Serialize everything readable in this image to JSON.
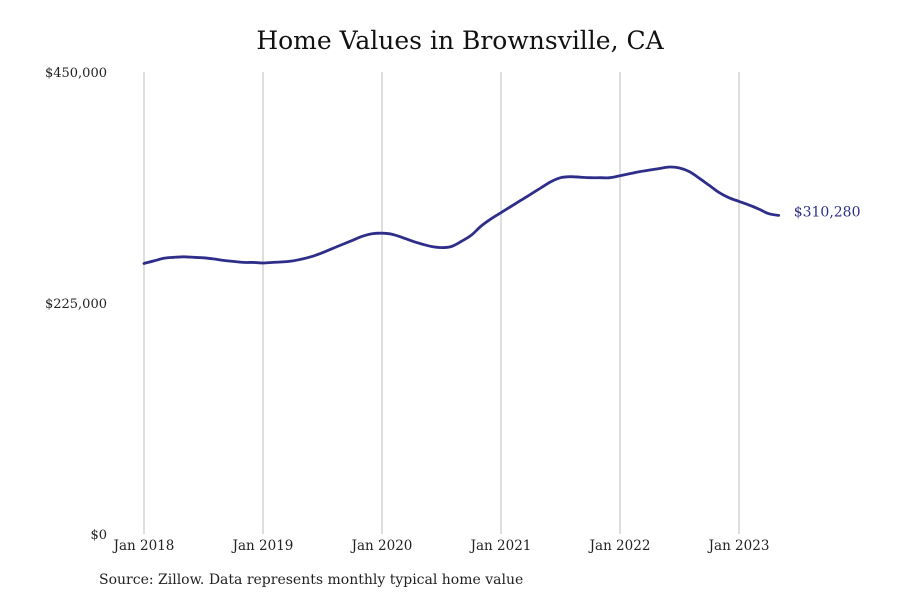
{
  "chart_data": {
    "type": "line",
    "title": "Home Values in Brownsville, CA",
    "source": "Source: Zillow. Data represents monthly typical home value",
    "xlabel": "",
    "ylabel": "",
    "ylim": [
      0,
      450000
    ],
    "y_ticks": [
      {
        "value": 0,
        "label": "$0"
      },
      {
        "value": 225000,
        "label": "$225,000"
      },
      {
        "value": 450000,
        "label": "$450,000"
      }
    ],
    "x_ticks": [
      {
        "month_index": 0,
        "label": "Jan 2018"
      },
      {
        "month_index": 12,
        "label": "Jan 2019"
      },
      {
        "month_index": 24,
        "label": "Jan 2020"
      },
      {
        "month_index": 36,
        "label": "Jan 2021"
      },
      {
        "month_index": 48,
        "label": "Jan 2022"
      },
      {
        "month_index": 60,
        "label": "Jan 2023"
      }
    ],
    "grid": "vertical",
    "end_label": "$310,280",
    "line_color": "#2e2e8a",
    "series": [
      {
        "x": [
          "2018-01",
          "2018-02",
          "2018-03",
          "2018-04",
          "2018-05",
          "2018-06",
          "2018-07",
          "2018-08",
          "2018-09",
          "2018-10",
          "2018-11",
          "2018-12",
          "2019-01",
          "2019-02",
          "2019-03",
          "2019-04",
          "2019-05",
          "2019-06",
          "2019-07",
          "2019-08",
          "2019-09",
          "2019-10",
          "2019-11",
          "2019-12",
          "2020-01",
          "2020-02",
          "2020-03",
          "2020-04",
          "2020-05",
          "2020-06",
          "2020-07",
          "2020-08",
          "2020-09",
          "2020-10",
          "2020-11",
          "2020-12",
          "2021-01",
          "2021-02",
          "2021-03",
          "2021-04",
          "2021-05",
          "2021-06",
          "2021-07",
          "2021-08",
          "2021-09",
          "2021-10",
          "2021-11",
          "2021-12",
          "2022-01",
          "2022-02",
          "2022-03",
          "2022-04",
          "2022-05",
          "2022-06",
          "2022-07",
          "2022-08",
          "2022-09",
          "2022-10",
          "2022-11",
          "2022-12",
          "2023-01",
          "2023-02",
          "2023-03",
          "2023-04",
          "2023-05"
        ],
        "values": [
          263500,
          266000,
          268500,
          269500,
          270000,
          269500,
          269000,
          268000,
          266500,
          265500,
          264500,
          264500,
          264000,
          264500,
          265000,
          266000,
          268000,
          270500,
          274000,
          278000,
          282000,
          286000,
          290000,
          292500,
          293000,
          292000,
          289000,
          285500,
          282500,
          280000,
          279000,
          280000,
          285000,
          291000,
          300000,
          307000,
          313000,
          319000,
          325000,
          331000,
          337000,
          343000,
          347000,
          348000,
          347500,
          347000,
          347000,
          347000,
          349000,
          351000,
          353000,
          354500,
          356000,
          357500,
          356500,
          353000,
          346500,
          339500,
          332500,
          327500,
          324000,
          320500,
          316500,
          312000,
          310280
        ]
      }
    ]
  }
}
